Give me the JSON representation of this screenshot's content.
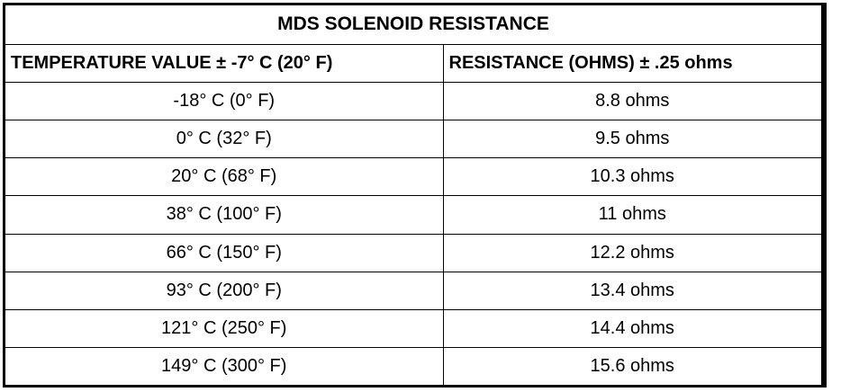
{
  "table": {
    "title": "MDS SOLENOID RESISTANCE",
    "headers": [
      "TEMPERATURE VALUE ± -7° C (20° F)",
      "RESISTANCE (OHMS) ± .25 ohms"
    ],
    "rows": [
      [
        "-18° C (0° F)",
        "8.8 ohms"
      ],
      [
        "0° C (32° F)",
        "9.5 ohms"
      ],
      [
        "20° C (68° F)",
        "10.3 ohms"
      ],
      [
        "38° C (100° F)",
        "11 ohms"
      ],
      [
        "66° C (150° F)",
        "12.2 ohms"
      ],
      [
        "93° C (200° F)",
        "13.4 ohms"
      ],
      [
        "121° C (250° F)",
        "14.4 ohms"
      ],
      [
        "149° C (300° F)",
        "15.6 ohms"
      ]
    ]
  }
}
